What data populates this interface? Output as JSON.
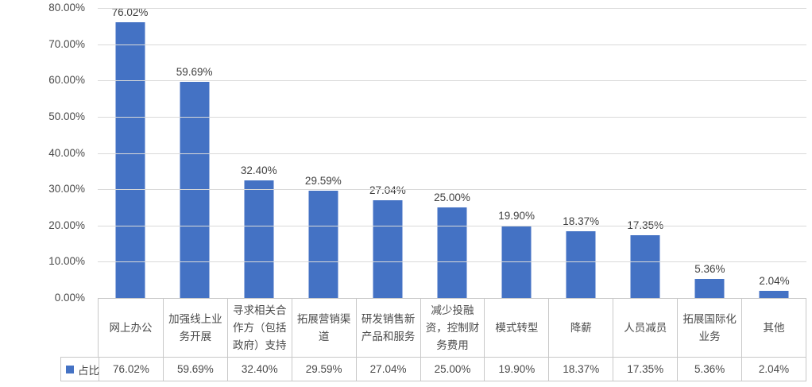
{
  "chart_data": {
    "type": "bar",
    "title": "",
    "series_name": "占比",
    "categories": [
      "网上办公",
      "加强线上业务开展",
      "寻求相关合作方（包括政府）支持",
      "拓展营销渠道",
      "研发销售新产品和服务",
      "减少投融资，控制财务费用",
      "模式转型",
      "降薪",
      "人员减员",
      "拓展国际化业务",
      "其他"
    ],
    "values": [
      76.02,
      59.69,
      32.4,
      29.59,
      27.04,
      25.0,
      19.9,
      18.37,
      17.35,
      5.36,
      2.04
    ],
    "labels": [
      "76.02%",
      "59.69%",
      "32.40%",
      "29.59%",
      "27.04%",
      "25.00%",
      "19.90%",
      "18.37%",
      "17.35%",
      "5.36%",
      "2.04%"
    ],
    "xlabel": "",
    "ylabel": "",
    "ylim": [
      0,
      80
    ],
    "ytick_step": 10,
    "yticks": [
      "80.00%",
      "70.00%",
      "60.00%",
      "50.00%",
      "40.00%",
      "30.00%",
      "20.00%",
      "10.00%",
      "0.00%"
    ],
    "grid": true,
    "legend_position": "data-table-left",
    "bar_color": "#4472c4",
    "gridline_color": "#d9d9d9",
    "table_border_color": "#c8c8c8"
  }
}
